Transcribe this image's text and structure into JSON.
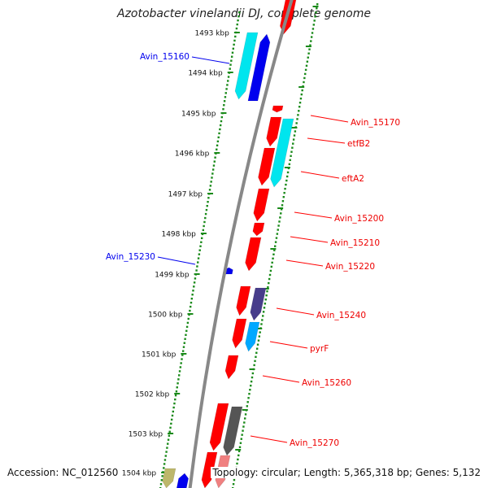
{
  "title": "Azotobacter vinelandii DJ, complete genome",
  "accession_text": "Accession: NC_012560",
  "topology_text": "Topology: circular; Length: 5,365,318 bp; Genes: 5,132",
  "colors": {
    "red": "#ff0000",
    "blue": "#0000ee",
    "cyan": "#00e5ee",
    "light_blue": "#00a8ff",
    "purple": "#483d8b",
    "grey": "#555555",
    "pink": "#f08080",
    "olive": "#bdb76b",
    "backbone": "#888888",
    "ticks": "#1a8a1a"
  },
  "kbp_labels": [
    "1493 kbp",
    "1494 kbp",
    "1495 kbp",
    "1496 kbp",
    "1497 kbp",
    "1498 kbp",
    "1499 kbp",
    "1500 kbp",
    "1501 kbp",
    "1502 kbp",
    "1503 kbp",
    "1504 kbp"
  ],
  "gene_labels_right": [
    "Avin_15170",
    "etfB2",
    "eftA2",
    "Avin_15200",
    "Avin_15210",
    "Avin_15220",
    "Avin_15240",
    "pyrF",
    "Avin_15260",
    "Avin_15270"
  ],
  "gene_labels_left": [
    "Avin_15160",
    "Avin_15230"
  ]
}
